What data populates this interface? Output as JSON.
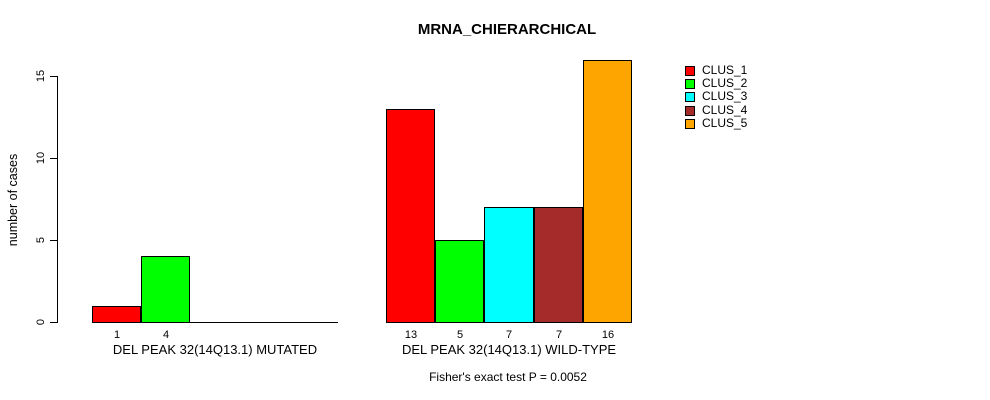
{
  "chart_data": {
    "type": "bar",
    "title": "MRNA_CHIERARCHICAL",
    "ylabel": "number of cases",
    "xlabel": "",
    "ylim": [
      0,
      16
    ],
    "yticks": [
      0,
      5,
      10,
      15
    ],
    "grid": false,
    "background": "#ffffff",
    "series": [
      {
        "name": "CLUS_1",
        "color": "#ff0000"
      },
      {
        "name": "CLUS_2",
        "color": "#00ff00"
      },
      {
        "name": "CLUS_3",
        "color": "#00ffff"
      },
      {
        "name": "CLUS_4",
        "color": "#a52a2a"
      },
      {
        "name": "CLUS_5",
        "color": "#ffa500"
      }
    ],
    "groups": [
      {
        "label": "DEL PEAK 32(14Q13.1) MUTATED",
        "values": [
          1,
          4,
          0,
          0,
          0
        ],
        "bar_labels": [
          "1",
          "4",
          "",
          "",
          ""
        ]
      },
      {
        "label": "DEL PEAK 32(14Q13.1) WILD-TYPE",
        "values": [
          13,
          5,
          7,
          7,
          16
        ],
        "bar_labels": [
          "13",
          "5",
          "7",
          "7",
          "16"
        ]
      }
    ],
    "annotation": "Fisher's exact test P = 0.0052",
    "legend": {
      "position": "right",
      "entries": [
        "CLUS_1",
        "CLUS_2",
        "CLUS_3",
        "CLUS_4",
        "CLUS_5"
      ]
    }
  }
}
